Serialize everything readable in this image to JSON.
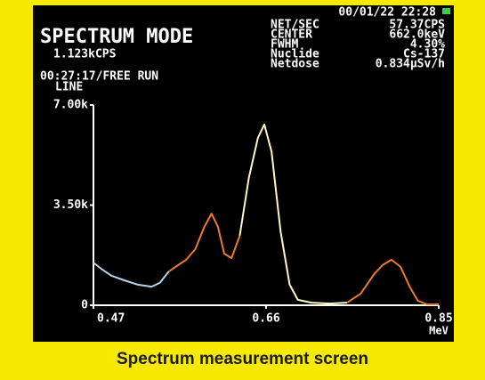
{
  "chart_data": {
    "type": "line",
    "title": "SPECTRUM MODE",
    "rate": "1.123kCPS",
    "run": "00:27:17/FREE RUN",
    "mode": "LINE",
    "datetime": "00/01/22 22:28",
    "readouts": [
      {
        "label": "NET/SEC",
        "value": "57.37CPS"
      },
      {
        "label": "CENTER",
        "value": "662.0keV"
      },
      {
        "label": "FWHM",
        "value": "4.30%"
      },
      {
        "label": "Nuclide",
        "value": "Cs-137"
      },
      {
        "label": "Netdose",
        "value": "0.834µSv/h"
      }
    ],
    "caption": "Spectrum measurement screen",
    "x_label": "MeV",
    "x": [
      0.47,
      0.48,
      0.49,
      0.504,
      0.519,
      0.534,
      0.543,
      0.553,
      0.563,
      0.572,
      0.582,
      0.592,
      0.6,
      0.607,
      0.614,
      0.622,
      0.631,
      0.641,
      0.651,
      0.658,
      0.666,
      0.676,
      0.686,
      0.695,
      0.71,
      0.73,
      0.749,
      0.764,
      0.779,
      0.788,
      0.798,
      0.808,
      0.818,
      0.827,
      0.837,
      0.85
    ],
    "series": [
      {
        "color": "#b8d4ee",
        "values": [
          1490,
          1240,
          1030,
          870,
          720,
          650,
          780,
          1180,
          null,
          null,
          null,
          null,
          null,
          null,
          null,
          null,
          null,
          null,
          null,
          null,
          null,
          null,
          null,
          null,
          null,
          null,
          null,
          null,
          null,
          null,
          null,
          null,
          null,
          null,
          null,
          null
        ]
      },
      {
        "color": "#f07a2a",
        "values": [
          null,
          null,
          null,
          null,
          null,
          null,
          null,
          1180,
          1400,
          1590,
          1960,
          2740,
          3200,
          2740,
          1800,
          1650,
          2430,
          null,
          null,
          null,
          null,
          null,
          null,
          null,
          null,
          null,
          90,
          400,
          1090,
          1400,
          1590,
          1340,
          650,
          160,
          30,
          30
        ]
      },
      {
        "color": "#fff6c8",
        "values": [
          null,
          null,
          null,
          null,
          null,
          null,
          null,
          null,
          null,
          null,
          null,
          null,
          null,
          null,
          null,
          null,
          2430,
          4450,
          5850,
          6320,
          5380,
          2580,
          720,
          190,
          90,
          60,
          90,
          null,
          null,
          null,
          null,
          null,
          null,
          null,
          null,
          null
        ]
      }
    ],
    "xlim": [
      0.47,
      0.85
    ],
    "xticks": [
      0.47,
      0.66,
      0.85
    ],
    "ylim": [
      0,
      7000
    ],
    "yticks": [
      {
        "value": 0,
        "label": "0"
      },
      {
        "value": 3500,
        "label": "3.50k"
      },
      {
        "value": 7000,
        "label": "7.00k"
      }
    ]
  }
}
